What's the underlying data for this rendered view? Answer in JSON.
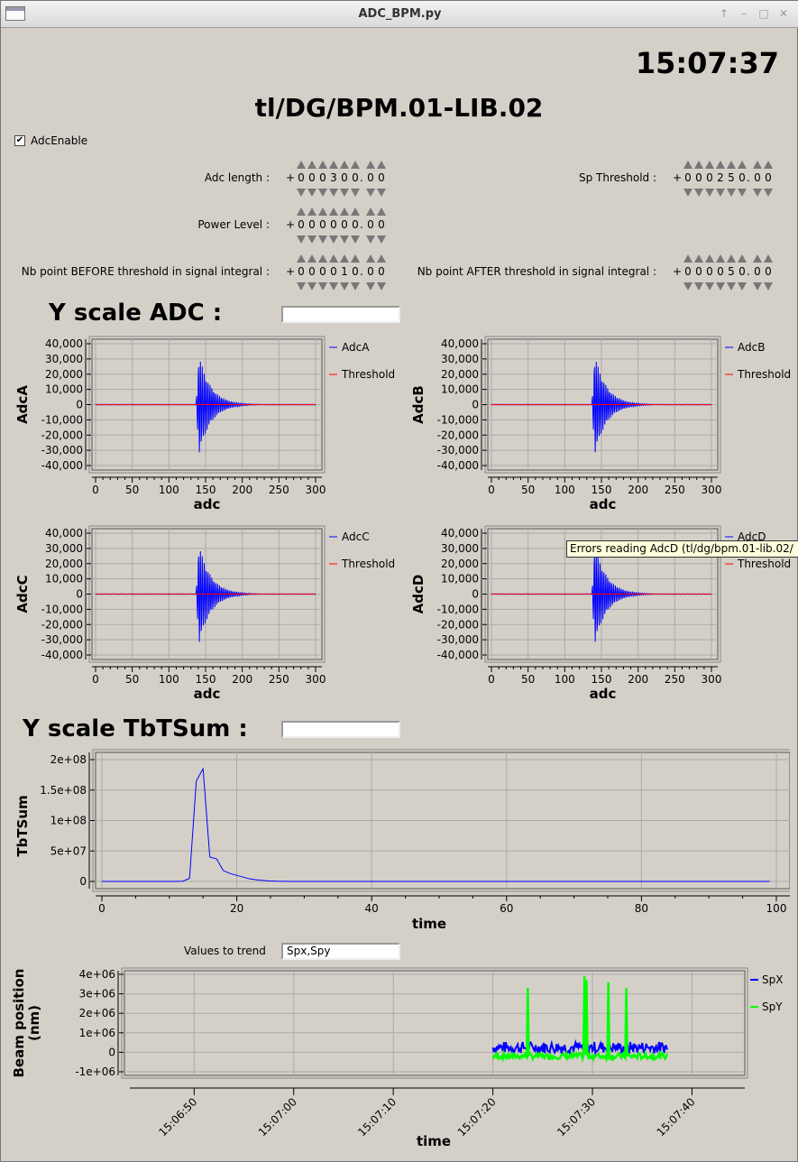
{
  "window": {
    "title": "ADC_BPM.py",
    "btn_up": "↑",
    "btn_min": "–",
    "btn_max": "□",
    "btn_close": "✕"
  },
  "clock": "15:07:37",
  "device_name": "tl/DG/BPM.01-LIB.02",
  "adc_enable": {
    "label": "AdcEnable",
    "checked": true,
    "mark": "✔"
  },
  "params": [
    {
      "label": "Adc length :",
      "sign": "+",
      "digits": "000300.00"
    },
    {
      "label": "Sp Threshold :",
      "sign": "+",
      "digits": "000250.00"
    },
    {
      "label": "Power Level :",
      "sign": "+",
      "digits": "000000.00"
    },
    {
      "label": "Nb point BEFORE threshold in signal integral :",
      "sign": "+",
      "digits": "000010.00"
    },
    {
      "label": "Nb point AFTER threshold in signal integral :",
      "sign": "+",
      "digits": "000050.00"
    }
  ],
  "yscale_adc": {
    "label": "Y scale ADC :",
    "value": ""
  },
  "yscale_tbt": {
    "label": "Y scale TbTSum :",
    "value": ""
  },
  "trend": {
    "label": "Values to trend",
    "value": "Spx,Spy"
  },
  "tooltip": "Errors reading AdcD (tl/dg/bpm.01-lib.02/",
  "colors": {
    "signal": "#0000ff",
    "threshold": "#ff0000",
    "spx": "#0000ff",
    "spy": "#00ff00"
  },
  "chart_data": [
    {
      "type": "line",
      "ylabel": "AdcA",
      "xlabel": "adc",
      "xlim": [
        0,
        300
      ],
      "ylim": [
        -40000,
        40000
      ],
      "xticks": [
        "0",
        "50",
        "100",
        "150",
        "200",
        "250",
        "300"
      ],
      "yticks": [
        "40,000",
        "30,000",
        "20,000",
        "10,000",
        "0",
        "-10,000",
        "-20,000",
        "-30,000",
        "-40,000"
      ],
      "grid": true,
      "legend": "right",
      "series": [
        {
          "name": "AdcA"
        },
        {
          "name": "Threshold"
        }
      ]
    },
    {
      "type": "line",
      "ylabel": "AdcB",
      "xlabel": "adc",
      "xlim": [
        0,
        300
      ],
      "ylim": [
        -40000,
        40000
      ],
      "xticks": [
        "0",
        "50",
        "100",
        "150",
        "200",
        "250",
        "300"
      ],
      "yticks": [
        "40,000",
        "30,000",
        "20,000",
        "10,000",
        "0",
        "-10,000",
        "-20,000",
        "-30,000",
        "-40,000"
      ],
      "grid": true,
      "legend": "right",
      "series": [
        {
          "name": "AdcB"
        },
        {
          "name": "Threshold"
        }
      ]
    },
    {
      "type": "line",
      "ylabel": "AdcC",
      "xlabel": "adc",
      "xlim": [
        0,
        300
      ],
      "ylim": [
        -40000,
        40000
      ],
      "xticks": [
        "0",
        "50",
        "100",
        "150",
        "200",
        "250",
        "300"
      ],
      "yticks": [
        "40,000",
        "30,000",
        "20,000",
        "10,000",
        "0",
        "-10,000",
        "-20,000",
        "-30,000",
        "-40,000"
      ],
      "grid": true,
      "legend": "right",
      "series": [
        {
          "name": "AdcC"
        },
        {
          "name": "Threshold"
        }
      ]
    },
    {
      "type": "line",
      "ylabel": "AdcD",
      "xlabel": "adc",
      "xlim": [
        0,
        300
      ],
      "ylim": [
        -40000,
        40000
      ],
      "xticks": [
        "0",
        "50",
        "100",
        "150",
        "200",
        "250",
        "300"
      ],
      "yticks": [
        "40,000",
        "30,000",
        "20,000",
        "10,000",
        "0",
        "-10,000",
        "-20,000",
        "-30,000",
        "-40,000"
      ],
      "grid": true,
      "legend": "right",
      "series": [
        {
          "name": "AdcD"
        },
        {
          "name": "Threshold"
        }
      ]
    },
    {
      "type": "line",
      "ylabel": "TbTSum",
      "xlabel": "time",
      "xlim": [
        0,
        100
      ],
      "ylim": [
        0,
        200000000
      ],
      "xticks": [
        "0",
        "20",
        "40",
        "60",
        "80",
        "100"
      ],
      "yticks": [
        "2e+08",
        "1.5e+08",
        "1e+08",
        "5e+07",
        "0"
      ],
      "grid": true,
      "x": [
        0,
        1,
        2,
        3,
        4,
        5,
        6,
        7,
        8,
        9,
        10,
        11,
        12,
        13,
        14,
        15,
        16,
        17,
        18,
        19,
        20,
        21,
        22,
        23,
        24,
        25,
        26,
        27,
        28,
        29,
        30,
        31,
        32,
        33,
        34,
        35,
        36,
        37,
        38,
        39,
        40,
        41,
        42,
        43,
        44,
        45,
        46,
        47,
        48,
        49,
        50,
        51,
        52,
        53,
        54,
        55,
        56,
        57,
        58,
        59,
        60,
        61,
        62,
        63,
        64,
        65,
        66,
        67,
        68,
        69,
        70,
        71,
        72,
        73,
        74,
        75,
        76,
        77,
        78,
        79,
        80,
        81,
        82,
        83,
        84,
        85,
        86,
        87,
        88,
        89,
        90,
        91,
        92,
        93,
        94,
        95,
        96,
        97,
        98,
        99
      ],
      "values": [
        0,
        0,
        0,
        0,
        0,
        0,
        0,
        0,
        0,
        0,
        0,
        0,
        500000,
        5000000,
        165000000,
        185000000,
        40000000,
        37000000,
        18000000,
        13000000,
        10000000,
        7000000,
        4000000,
        2500000,
        1500000,
        800000,
        300000,
        100000,
        0,
        0,
        0,
        0,
        0,
        0,
        0,
        0,
        0,
        0,
        0,
        0,
        0,
        0,
        0,
        0,
        0,
        0,
        0,
        0,
        0,
        0,
        0,
        0,
        0,
        0,
        0,
        0,
        0,
        0,
        0,
        0,
        0,
        0,
        0,
        0,
        0,
        0,
        0,
        0,
        0,
        0,
        0,
        0,
        0,
        0,
        0,
        0,
        0,
        0,
        0,
        0,
        0,
        0,
        0,
        0,
        0,
        0,
        0,
        0,
        0,
        0,
        0,
        0,
        0,
        0,
        0,
        0,
        0,
        0,
        0,
        0
      ]
    },
    {
      "type": "line",
      "ylabel": "Beam position (nm)",
      "xlabel": "time",
      "ylim": [
        -1000000,
        4000000
      ],
      "xticks": [
        "15:06:50",
        "15:07:00",
        "15:07:10",
        "15:07:20",
        "15:07:30",
        "15:07:40"
      ],
      "yticks": [
        "4e+06",
        "3e+06",
        "2e+06",
        "1e+06",
        "0",
        "-1e+06"
      ],
      "grid": true,
      "legend": "right",
      "series": [
        {
          "name": "SpX",
          "base": 250000,
          "noise": 300000
        },
        {
          "name": "SpY",
          "base": -200000,
          "noise": 150000,
          "spikes": [
            [
              "15:07:23.5",
              3300000
            ],
            [
              "15:07:29.2",
              3900000
            ],
            [
              "15:07:29.4",
              3700000
            ],
            [
              "15:07:31.6",
              3600000
            ],
            [
              "15:07:33.4",
              3300000
            ]
          ]
        }
      ],
      "time_range": [
        "15:07:20",
        "15:07:37.5"
      ]
    }
  ]
}
